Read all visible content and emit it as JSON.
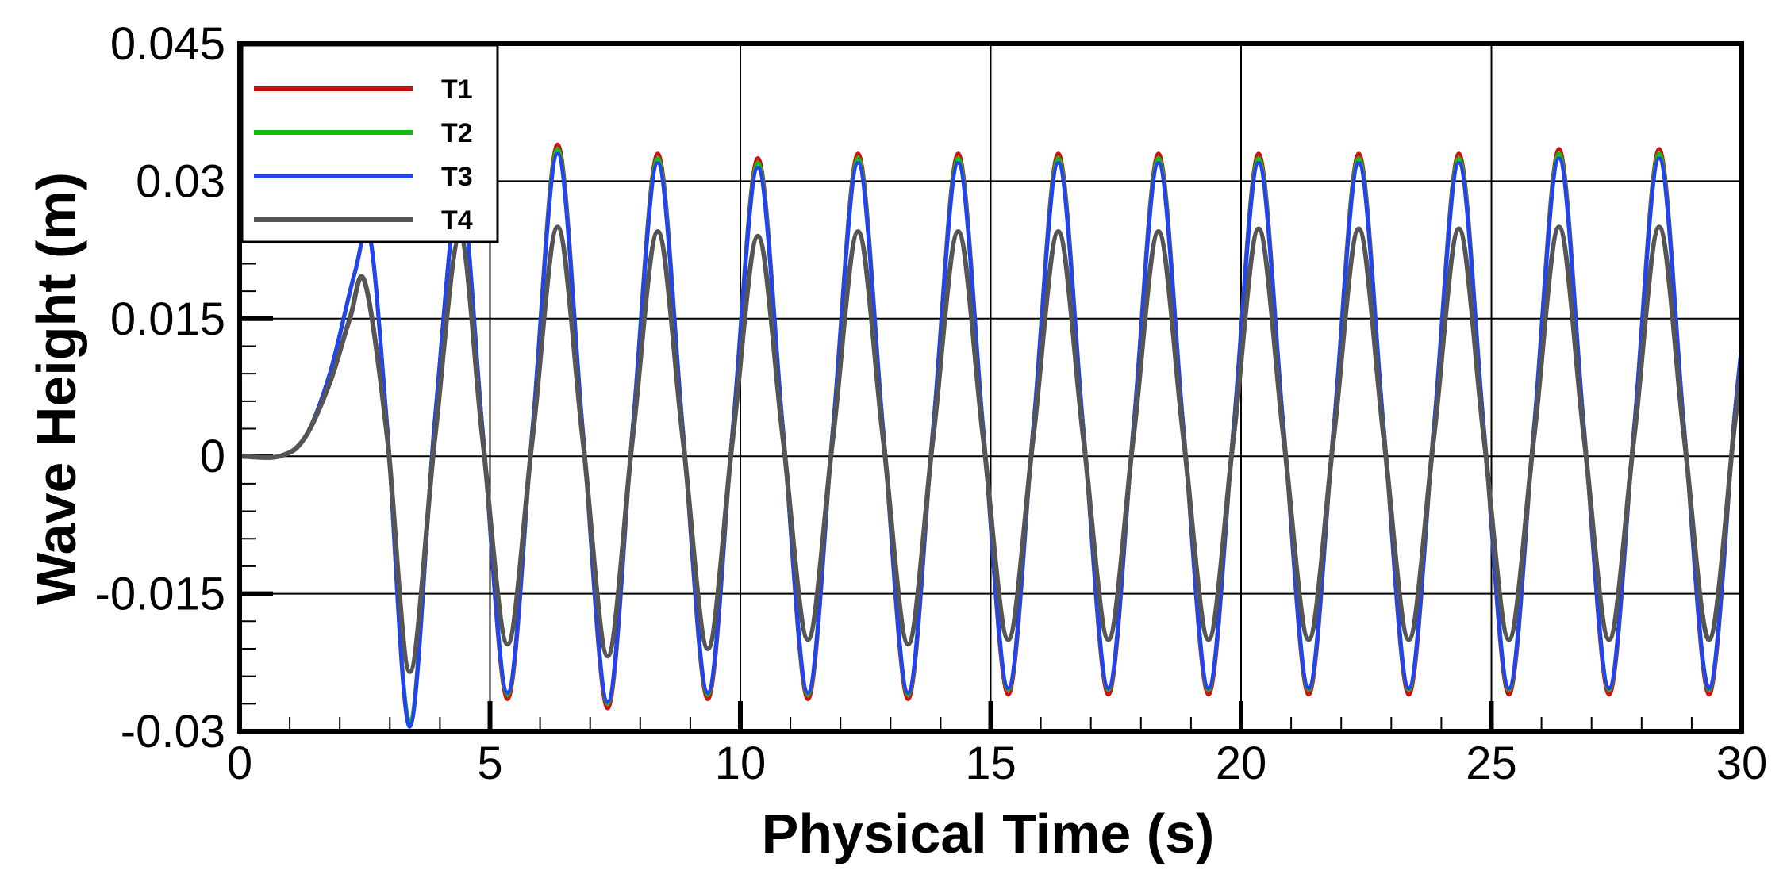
{
  "chart_data": {
    "type": "line",
    "title": "",
    "xlabel": "Physical Time (s)",
    "ylabel": "Wave Height (m)",
    "xlim": [
      0,
      30
    ],
    "ylim": [
      -0.03,
      0.045
    ],
    "xticks": [
      0,
      5,
      10,
      15,
      20,
      25,
      30
    ],
    "xtick_labels": [
      "0",
      "5",
      "10",
      "15",
      "20",
      "25",
      "30"
    ],
    "yticks": [
      -0.03,
      -0.015,
      0,
      0.015,
      0.03,
      0.045
    ],
    "ytick_labels": [
      "-0.03",
      "-0.015",
      "0",
      "0.015",
      "0.03",
      "0.045"
    ],
    "grid": true,
    "legend_position": "top-left",
    "series": [
      {
        "name": "T1",
        "color": "#cc1111",
        "x": [
          0,
          0.8,
          1.3,
          1.8,
          2.3,
          2.6,
          2.95,
          3.4,
          3.9,
          4.4,
          4.85,
          5.35,
          5.85,
          6.35,
          6.85,
          7.35,
          7.85,
          8.35,
          8.85,
          9.35,
          9.85,
          10.35,
          10.85,
          11.35,
          11.85,
          12.35,
          12.85,
          13.35,
          13.85,
          14.35,
          14.85,
          15.35,
          15.85,
          16.35,
          16.85,
          17.35,
          17.85,
          18.35,
          18.85,
          19.35,
          19.85,
          20.35,
          20.85,
          21.35,
          21.85,
          22.35,
          22.85,
          23.35,
          23.85,
          24.35,
          24.85,
          25.35,
          25.85,
          26.35,
          26.85,
          27.35,
          27.85,
          28.35,
          28.85,
          29.35,
          29.85,
          30
        ],
        "y": [
          0,
          0,
          0.002,
          0.009,
          0.02,
          0.024,
          0.003,
          -0.029,
          0.004,
          0.029,
          0.003,
          -0.0265,
          0.003,
          0.034,
          0.003,
          -0.0275,
          0.003,
          0.033,
          0.003,
          -0.0265,
          0.003,
          0.0325,
          0.003,
          -0.0265,
          0.003,
          0.033,
          0.003,
          -0.0265,
          0.003,
          0.033,
          0.003,
          -0.026,
          0.003,
          0.033,
          0.003,
          -0.026,
          0.003,
          0.033,
          0.003,
          -0.026,
          0.003,
          0.033,
          0.003,
          -0.026,
          0.003,
          0.033,
          0.003,
          -0.026,
          0.003,
          0.033,
          0.003,
          -0.026,
          0.003,
          0.0335,
          0.003,
          -0.026,
          0.003,
          0.0335,
          0.003,
          -0.026,
          0.004,
          0.012
        ]
      },
      {
        "name": "T2",
        "color": "#11bb11",
        "x": [
          0,
          0.8,
          1.3,
          1.8,
          2.3,
          2.6,
          2.95,
          3.4,
          3.9,
          4.4,
          4.85,
          5.35,
          5.85,
          6.35,
          6.85,
          7.35,
          7.85,
          8.35,
          8.85,
          9.35,
          9.85,
          10.35,
          10.85,
          11.35,
          11.85,
          12.35,
          12.85,
          13.35,
          13.85,
          14.35,
          14.85,
          15.35,
          15.85,
          16.35,
          16.85,
          17.35,
          17.85,
          18.35,
          18.85,
          19.35,
          19.85,
          20.35,
          20.85,
          21.35,
          21.85,
          22.35,
          22.85,
          23.35,
          23.85,
          24.35,
          24.85,
          25.35,
          25.85,
          26.35,
          26.85,
          27.35,
          27.85,
          28.35,
          28.85,
          29.35,
          29.85,
          30
        ],
        "y": [
          0,
          0,
          0.002,
          0.009,
          0.02,
          0.024,
          0.003,
          -0.029,
          0.004,
          0.029,
          0.003,
          -0.026,
          0.003,
          0.0335,
          0.003,
          -0.027,
          0.003,
          0.0325,
          0.003,
          -0.026,
          0.003,
          0.032,
          0.003,
          -0.026,
          0.003,
          0.0325,
          0.003,
          -0.026,
          0.003,
          0.0325,
          0.003,
          -0.0255,
          0.003,
          0.0325,
          0.003,
          -0.0255,
          0.003,
          0.0325,
          0.003,
          -0.0255,
          0.003,
          0.0325,
          0.003,
          -0.0255,
          0.003,
          0.0325,
          0.003,
          -0.0255,
          0.003,
          0.0325,
          0.003,
          -0.0255,
          0.003,
          0.033,
          0.003,
          -0.0255,
          0.003,
          0.033,
          0.003,
          -0.0255,
          0.004,
          0.012
        ]
      },
      {
        "name": "T3",
        "color": "#2244ee",
        "x": [
          0,
          0.8,
          1.3,
          1.8,
          2.3,
          2.6,
          2.95,
          3.4,
          3.9,
          4.4,
          4.85,
          5.35,
          5.85,
          6.35,
          6.85,
          7.35,
          7.85,
          8.35,
          8.85,
          9.35,
          9.85,
          10.35,
          10.85,
          11.35,
          11.85,
          12.35,
          12.85,
          13.35,
          13.85,
          14.35,
          14.85,
          15.35,
          15.85,
          16.35,
          16.85,
          17.35,
          17.85,
          18.35,
          18.85,
          19.35,
          19.85,
          20.35,
          20.85,
          21.35,
          21.85,
          22.35,
          22.85,
          23.35,
          23.85,
          24.35,
          24.85,
          25.35,
          25.85,
          26.35,
          26.85,
          27.35,
          27.85,
          28.35,
          28.85,
          29.35,
          29.85,
          30
        ],
        "y": [
          0,
          0,
          0.002,
          0.009,
          0.02,
          0.024,
          0.003,
          -0.0295,
          0.004,
          0.029,
          0.003,
          -0.0258,
          0.003,
          0.033,
          0.003,
          -0.0268,
          0.003,
          0.032,
          0.003,
          -0.0258,
          0.003,
          0.0315,
          0.003,
          -0.0258,
          0.003,
          0.032,
          0.003,
          -0.0258,
          0.003,
          0.032,
          0.003,
          -0.0253,
          0.003,
          0.032,
          0.003,
          -0.0253,
          0.003,
          0.032,
          0.003,
          -0.0253,
          0.003,
          0.032,
          0.003,
          -0.0253,
          0.003,
          0.032,
          0.003,
          -0.0253,
          0.003,
          0.032,
          0.003,
          -0.0253,
          0.003,
          0.0325,
          0.003,
          -0.0253,
          0.003,
          0.0325,
          0.003,
          -0.0253,
          0.004,
          0.012
        ]
      },
      {
        "name": "T4",
        "color": "#555555",
        "x": [
          0,
          0.8,
          1.3,
          1.8,
          2.2,
          2.5,
          2.95,
          3.4,
          3.9,
          4.4,
          4.85,
          5.35,
          5.85,
          6.35,
          6.85,
          7.35,
          7.85,
          8.35,
          8.85,
          9.35,
          9.85,
          10.35,
          10.85,
          11.35,
          11.85,
          12.35,
          12.85,
          13.35,
          13.85,
          14.35,
          14.85,
          15.35,
          15.85,
          16.35,
          16.85,
          17.35,
          17.85,
          18.35,
          18.85,
          19.35,
          19.85,
          20.35,
          20.85,
          21.35,
          21.85,
          22.35,
          22.85,
          23.35,
          23.85,
          24.35,
          24.85,
          25.35,
          25.85,
          26.35,
          26.85,
          27.35,
          27.85,
          28.35,
          28.85,
          29.35,
          29.85,
          30
        ],
        "y": [
          0,
          0,
          0.002,
          0.008,
          0.015,
          0.019,
          0.002,
          -0.0235,
          0.002,
          0.024,
          0.002,
          -0.0205,
          0.002,
          0.025,
          0.002,
          -0.0218,
          0.002,
          0.0245,
          0.002,
          -0.021,
          0.002,
          0.024,
          0.002,
          -0.02,
          0.002,
          0.0245,
          0.002,
          -0.0205,
          0.002,
          0.0245,
          0.002,
          -0.02,
          0.002,
          0.0245,
          0.002,
          -0.02,
          0.002,
          0.0245,
          0.002,
          -0.02,
          0.002,
          0.0248,
          0.002,
          -0.02,
          0.002,
          0.0248,
          0.002,
          -0.02,
          0.002,
          0.0248,
          0.002,
          -0.02,
          0.002,
          0.025,
          0.002,
          -0.02,
          0.002,
          0.025,
          0.002,
          -0.02,
          0.003,
          0.01
        ]
      }
    ]
  }
}
